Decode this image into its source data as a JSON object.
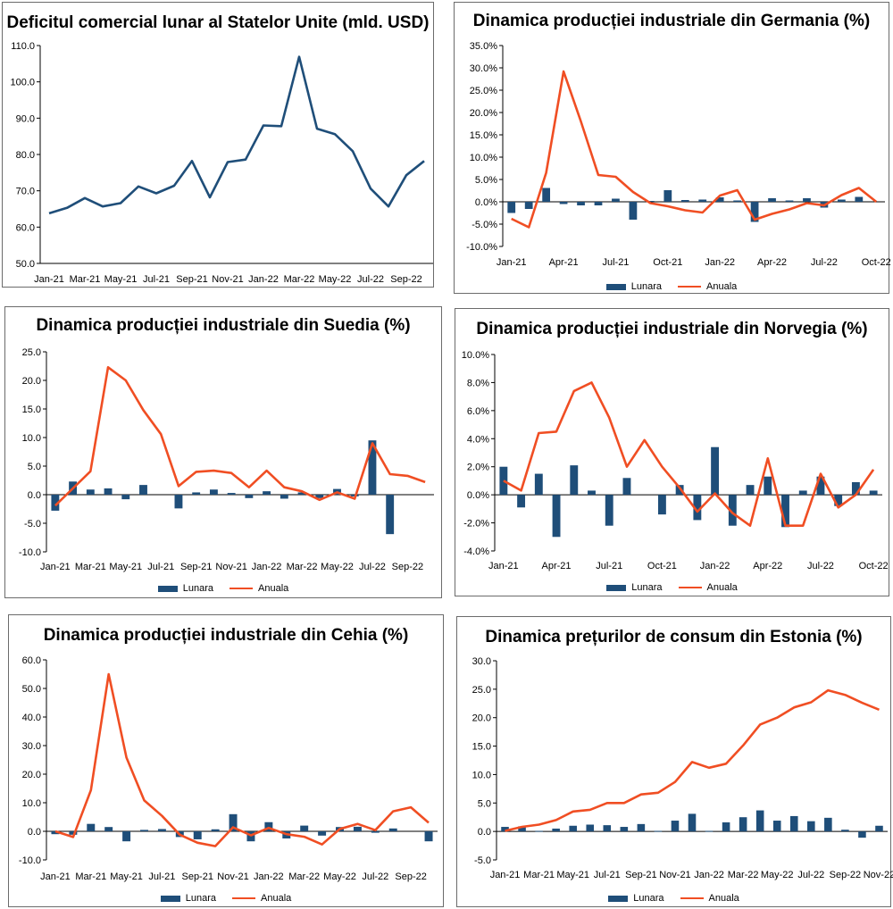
{
  "chart_data": [
    {
      "id": "us",
      "type": "line",
      "title": "Deficitul comercial lunar al Statelor Unite (mld. USD)",
      "ylim": [
        50,
        110
      ],
      "yticks": [
        "50.0",
        "60.0",
        "70.0",
        "80.0",
        "90.0",
        "100.0",
        "110.0"
      ],
      "ytick_values": [
        50,
        60,
        70,
        80,
        90,
        100,
        110
      ],
      "xtick_labels": [
        "Jan-21",
        "Mar-21",
        "May-21",
        "Jul-21",
        "Sep-21",
        "Nov-21",
        "Jan-22",
        "Mar-22",
        "May-22",
        "Jul-22",
        "Sep-22"
      ],
      "series": [
        {
          "name": "Deficit",
          "color": "#1f4e79",
          "values": [
            63.8,
            65.3,
            68.0,
            65.7,
            66.6,
            71.2,
            69.3,
            71.4,
            78.2,
            68.2,
            77.9,
            78.6,
            88.0,
            87.8,
            106.9,
            87.1,
            85.6,
            80.9,
            70.6,
            65.7,
            74.3,
            78.2
          ]
        }
      ]
    },
    {
      "id": "de",
      "type": "bar+line",
      "title": "Dinamica producției industriale din Germania (%)",
      "ylim": [
        -10,
        35
      ],
      "yticks": [
        "-10.0%",
        "-5.0%",
        "0.0%",
        "5.0%",
        "10.0%",
        "15.0%",
        "20.0%",
        "25.0%",
        "30.0%",
        "35.0%"
      ],
      "ytick_values": [
        -10,
        -5,
        0,
        5,
        10,
        15,
        20,
        25,
        30,
        35
      ],
      "xtick_labels": [
        "Jan-21",
        "Apr-21",
        "Jul-21",
        "Oct-21",
        "Jan-22",
        "Apr-22",
        "Jul-22",
        "Oct-22"
      ],
      "legend": [
        "Lunara",
        "Anuala"
      ],
      "series": [
        {
          "name": "Lunara",
          "color": "#1f4e79",
          "values": [
            -2.5,
            -1.6,
            3.1,
            -0.5,
            -0.8,
            -0.8,
            0.7,
            -4.0,
            0.2,
            2.6,
            0.4,
            0.5,
            1.0,
            0.3,
            -4.5,
            0.8,
            0.3,
            0.8,
            -1.3,
            0.5,
            1.1,
            0.0
          ]
        },
        {
          "name": "Anuala",
          "color": "#f04e23",
          "values": [
            -3.8,
            -5.7,
            6.5,
            29.2,
            18.0,
            6.0,
            5.6,
            2.2,
            -0.3,
            -1.0,
            -1.9,
            -2.4,
            1.4,
            2.6,
            -4.0,
            -2.7,
            -1.7,
            -0.3,
            -0.8,
            1.5,
            3.1,
            0.0
          ]
        }
      ]
    },
    {
      "id": "se",
      "type": "bar+line",
      "title": "Dinamica producției industriale din Suedia (%)",
      "ylim": [
        -10,
        25
      ],
      "yticks": [
        "-10.0",
        "-5.0",
        "0.0",
        "5.0",
        "10.0",
        "15.0",
        "20.0",
        "25.0"
      ],
      "ytick_values": [
        -10,
        -5,
        0,
        5,
        10,
        15,
        20,
        25
      ],
      "xtick_labels": [
        "Jan-21",
        "Mar-21",
        "May-21",
        "Jul-21",
        "Sep-21",
        "Nov-21",
        "Jan-22",
        "Mar-22",
        "May-22",
        "Jul-22",
        "Sep-22"
      ],
      "legend": [
        "Lunara",
        "Anuala"
      ],
      "series": [
        {
          "name": "Lunara",
          "color": "#1f4e79",
          "values": [
            -2.8,
            2.3,
            0.9,
            1.1,
            -0.8,
            1.7,
            0.0,
            -2.4,
            0.4,
            0.9,
            0.3,
            -0.6,
            0.6,
            -0.7,
            0.4,
            -0.6,
            1.0,
            -0.3,
            9.5,
            -6.9,
            0.0,
            0.0
          ]
        },
        {
          "name": "Anuala",
          "color": "#f04e23",
          "values": [
            -1.9,
            1.1,
            4.1,
            22.3,
            20.0,
            14.8,
            10.6,
            1.5,
            4.0,
            4.2,
            3.8,
            1.3,
            4.2,
            1.3,
            0.6,
            -0.9,
            0.4,
            -0.7,
            9.0,
            3.6,
            3.3,
            2.2
          ]
        }
      ]
    },
    {
      "id": "no",
      "type": "bar+line",
      "title": "Dinamica producției industriale din Norvegia (%)",
      "ylim": [
        -4,
        10
      ],
      "yticks": [
        "-4.0%",
        "-2.0%",
        "0.0%",
        "2.0%",
        "4.0%",
        "6.0%",
        "8.0%",
        "10.0%"
      ],
      "ytick_values": [
        -4,
        -2,
        0,
        2,
        4,
        6,
        8,
        10
      ],
      "xtick_labels": [
        "Jan-21",
        "Apr-21",
        "Jul-21",
        "Oct-21",
        "Jan-22",
        "Apr-22",
        "Jul-22",
        "Oct-22"
      ],
      "legend": [
        "Lunara",
        "Anuala"
      ],
      "series": [
        {
          "name": "Lunara",
          "color": "#1f4e79",
          "values": [
            2.0,
            -0.9,
            1.5,
            -3.0,
            2.1,
            0.3,
            -2.2,
            1.2,
            0.0,
            -1.4,
            0.7,
            -1.8,
            3.4,
            -2.2,
            0.7,
            1.3,
            -2.3,
            0.3,
            1.3,
            -0.8,
            0.9,
            0.3
          ]
        },
        {
          "name": "Anuala",
          "color": "#f04e23",
          "values": [
            1.0,
            0.3,
            4.4,
            4.5,
            7.4,
            8.0,
            5.5,
            2.0,
            3.9,
            2.0,
            0.5,
            -1.2,
            0.1,
            -1.3,
            -2.2,
            2.6,
            -2.2,
            -2.2,
            1.5,
            -0.9,
            0.0,
            1.8
          ]
        }
      ]
    },
    {
      "id": "cz",
      "type": "bar+line",
      "title": "Dinamica producției industriale din Cehia (%)",
      "ylim": [
        -10,
        60
      ],
      "yticks": [
        "-10.0",
        "0.0",
        "10.0",
        "20.0",
        "30.0",
        "40.0",
        "50.0",
        "60.0"
      ],
      "ytick_values": [
        -10,
        0,
        10,
        20,
        30,
        40,
        50,
        60
      ],
      "xtick_labels": [
        "Jan-21",
        "Mar-21",
        "May-21",
        "Jul-21",
        "Sep-21",
        "Nov-21",
        "Jan-22",
        "Mar-22",
        "May-22",
        "Jul-22",
        "Sep-22"
      ],
      "legend": [
        "Lunara",
        "Anuala"
      ],
      "series": [
        {
          "name": "Lunara",
          "color": "#1f4e79",
          "values": [
            -1.0,
            -1.2,
            2.6,
            1.5,
            -3.5,
            0.5,
            0.8,
            -2.0,
            -2.8,
            0.7,
            6.0,
            -3.5,
            3.2,
            -2.5,
            2.0,
            -1.5,
            1.5,
            1.6,
            -0.5,
            1.0,
            0.0,
            -3.5
          ]
        },
        {
          "name": "Anuala",
          "color": "#f04e23",
          "values": [
            0.0,
            -2.0,
            14.4,
            55.0,
            25.8,
            10.8,
            5.4,
            -1.2,
            -4.0,
            -5.2,
            1.4,
            -1.4,
            1.2,
            -1.0,
            -1.9,
            -4.6,
            0.8,
            2.6,
            0.4,
            7.0,
            8.4,
            3.0
          ]
        }
      ]
    },
    {
      "id": "ee",
      "type": "bar+line",
      "title": "Dinamica prețurilor de consum din Estonia (%)",
      "ylim": [
        -5,
        30
      ],
      "yticks": [
        "-5.0",
        "0.0",
        "5.0",
        "10.0",
        "15.0",
        "20.0",
        "25.0",
        "30.0"
      ],
      "ytick_values": [
        -5,
        0,
        5,
        10,
        15,
        20,
        25,
        30
      ],
      "xtick_labels": [
        "Jan-21",
        "Mar-21",
        "May-21",
        "Jul-21",
        "Sep-21",
        "Nov-21",
        "Jan-22",
        "Mar-22",
        "May-22",
        "Jul-22",
        "Sep-22",
        "Nov-22"
      ],
      "legend": [
        "Lunara",
        "Anuala"
      ],
      "series": [
        {
          "name": "Lunara",
          "color": "#1f4e79",
          "values": [
            0.8,
            0.9,
            0.1,
            0.5,
            1.0,
            1.2,
            1.1,
            0.8,
            1.3,
            0.1,
            1.9,
            3.1,
            0.1,
            1.6,
            2.5,
            3.7,
            1.9,
            2.7,
            1.8,
            2.4,
            0.3,
            -1.1,
            1.0
          ]
        },
        {
          "name": "Anuala",
          "color": "#f04e23",
          "values": [
            0.1,
            0.8,
            1.2,
            2.0,
            3.5,
            3.8,
            5.0,
            5.0,
            6.5,
            6.8,
            8.7,
            12.2,
            11.2,
            11.9,
            15.1,
            18.8,
            20.0,
            21.8,
            22.7,
            24.8,
            24.0,
            22.6,
            21.4
          ]
        }
      ]
    }
  ]
}
